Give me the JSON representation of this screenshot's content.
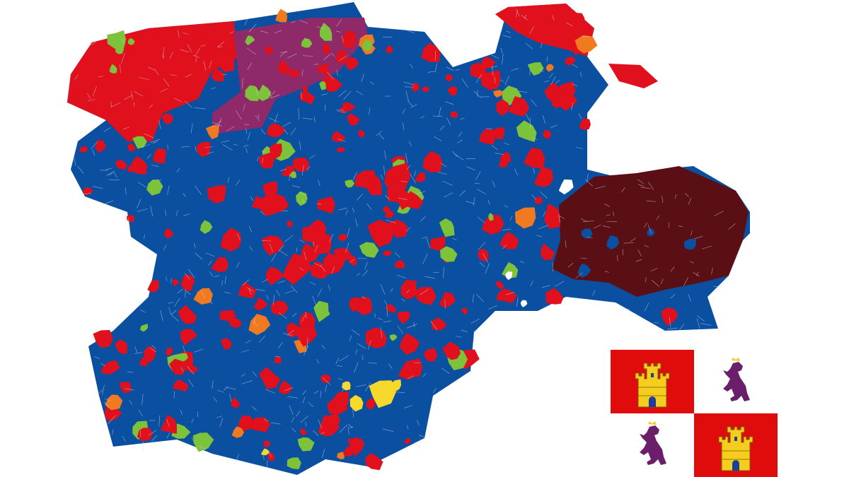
{
  "map": {
    "colors": {
      "base": "#0b4fa0",
      "red": "#e0101c",
      "purple": "#8e2a6a",
      "maroon": "#5a0f14",
      "green": "#7cc23a",
      "yellow": "#f7d92c",
      "orange": "#f07a20",
      "border": "#c9d6ea"
    }
  },
  "flag": {
    "colors": {
      "red": "#e00c0c",
      "white": "#ffffff",
      "castle": "#f5cd1e",
      "lion": "#6b1f6b"
    },
    "quarters": [
      "castle",
      "lion",
      "lion",
      "castle"
    ]
  }
}
